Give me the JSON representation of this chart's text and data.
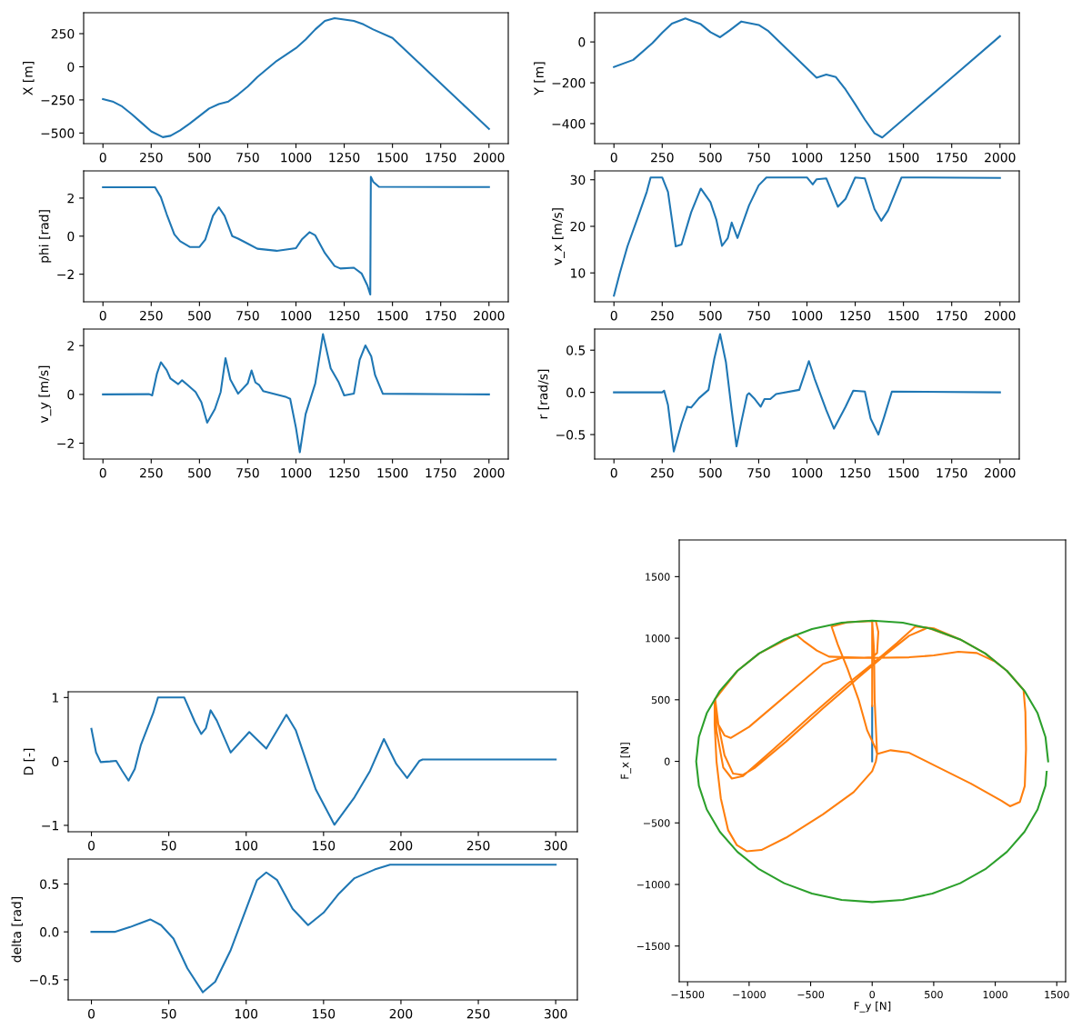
{
  "chart_data": [
    {
      "type": "line",
      "ylabel": "X [m]",
      "xlim": [
        -100,
        2100
      ],
      "ylim": [
        -580,
        408
      ],
      "xticks": [
        0,
        250,
        500,
        750,
        1000,
        1250,
        1500,
        1750,
        2000
      ],
      "yticks": [
        -500,
        -250,
        0,
        250
      ],
      "series": [
        {
          "color": "#1f77b4",
          "x": [
            0,
            50,
            100,
            150,
            200,
            250,
            310,
            350,
            400,
            450,
            500,
            550,
            600,
            650,
            700,
            750,
            800,
            900,
            1000,
            1050,
            1100,
            1150,
            1200,
            1300,
            1350,
            1400,
            1500,
            1600,
            1700,
            1800,
            1900,
            2000
          ],
          "values": [
            -244,
            -262,
            -300,
            -359,
            -423,
            -487,
            -531,
            -521,
            -479,
            -428,
            -372,
            -315,
            -282,
            -262,
            -210,
            -149,
            -77,
            44,
            141,
            205,
            282,
            346,
            367,
            346,
            320,
            282,
            218,
            80,
            -57,
            -194,
            -332,
            -469
          ]
        }
      ]
    },
    {
      "type": "line",
      "ylabel": "Y [m]",
      "xlim": [
        -100,
        2100
      ],
      "ylim": [
        -498,
        143
      ],
      "xticks": [
        0,
        250,
        500,
        750,
        1000,
        1250,
        1500,
        1750,
        2000
      ],
      "yticks": [
        -400,
        -200,
        0
      ],
      "series": [
        {
          "color": "#1f77b4",
          "x": [
            0,
            100,
            200,
            250,
            300,
            370,
            450,
            500,
            550,
            600,
            660,
            750,
            800,
            900,
            1000,
            1050,
            1100,
            1150,
            1200,
            1250,
            1300,
            1350,
            1390,
            1500,
            1750,
            2000
          ],
          "values": [
            -123,
            -88,
            -5,
            45,
            90,
            115,
            87,
            48,
            23,
            57,
            100,
            83,
            53,
            -38,
            -130,
            -175,
            -160,
            -172,
            -233,
            -305,
            -380,
            -447,
            -468,
            -379,
            -175,
            28
          ]
        }
      ]
    },
    {
      "type": "line",
      "ylabel": "phi [rad]",
      "xlim": [
        -100,
        2100
      ],
      "ylim": [
        -3.45,
        3.43
      ],
      "xticks": [
        0,
        250,
        500,
        750,
        1000,
        1250,
        1500,
        1750,
        2000
      ],
      "yticks": [
        -2,
        0,
        2
      ],
      "series": [
        {
          "color": "#1f77b4",
          "x": [
            0,
            270,
            300,
            330,
            370,
            400,
            450,
            500,
            530,
            570,
            600,
            630,
            670,
            700,
            750,
            800,
            900,
            1000,
            1030,
            1070,
            1100,
            1150,
            1200,
            1230,
            1300,
            1340,
            1370,
            1385,
            1388,
            1400,
            1430,
            2000
          ],
          "values": [
            2.57,
            2.57,
            2.05,
            1.16,
            0.09,
            -0.27,
            -0.57,
            -0.57,
            -0.18,
            1.07,
            1.52,
            1.07,
            0,
            -0.13,
            -0.39,
            -0.66,
            -0.77,
            -0.63,
            -0.18,
            0.21,
            0.04,
            -0.89,
            -1.57,
            -1.7,
            -1.66,
            -1.96,
            -2.59,
            -3.07,
            3.12,
            2.86,
            2.59,
            2.58
          ]
        }
      ]
    },
    {
      "type": "line",
      "ylabel": "v_x [m/s]",
      "xlim": [
        -100,
        2100
      ],
      "ylim": [
        3.8,
        31.9
      ],
      "xticks": [
        0,
        250,
        500,
        750,
        1000,
        1250,
        1500,
        1750,
        2000
      ],
      "yticks": [
        10,
        20,
        30
      ],
      "series": [
        {
          "color": "#1f77b4",
          "x": [
            0,
            30,
            70,
            120,
            170,
            190,
            250,
            280,
            320,
            350,
            400,
            450,
            500,
            530,
            560,
            590,
            610,
            640,
            700,
            750,
            790,
            1000,
            1030,
            1050,
            1100,
            1160,
            1200,
            1250,
            1300,
            1350,
            1385,
            1420,
            1490,
            2000
          ],
          "values": [
            5.1,
            9.9,
            15.7,
            21.5,
            27.4,
            30.5,
            30.5,
            27.4,
            15.7,
            16.1,
            23,
            28.1,
            25.2,
            21.5,
            15.8,
            17.5,
            20.8,
            17.5,
            24.5,
            28.8,
            30.5,
            30.5,
            29,
            30.1,
            30.3,
            24.2,
            25.9,
            30.5,
            30.3,
            23.7,
            21.2,
            23.4,
            30.5,
            30.4
          ]
        }
      ]
    },
    {
      "type": "line",
      "ylabel": "v_y [m/s]",
      "xlim": [
        -100,
        2100
      ],
      "ylim": [
        -2.65,
        2.68
      ],
      "xticks": [
        0,
        250,
        500,
        750,
        1000,
        1250,
        1500,
        1750,
        2000
      ],
      "yticks": [
        -2,
        0,
        2
      ],
      "series": [
        {
          "color": "#1f77b4",
          "x": [
            0,
            240,
            255,
            280,
            300,
            330,
            350,
            390,
            410,
            440,
            480,
            510,
            540,
            580,
            610,
            635,
            660,
            700,
            750,
            770,
            790,
            810,
            830,
            950,
            970,
            1000,
            1020,
            1050,
            1100,
            1140,
            1180,
            1220,
            1250,
            1300,
            1330,
            1360,
            1390,
            1410,
            1450,
            2000
          ],
          "values": [
            0,
            0.01,
            -0.04,
            0.86,
            1.32,
            1.0,
            0.65,
            0.42,
            0.58,
            0.38,
            0.1,
            -0.32,
            -1.16,
            -0.6,
            0.1,
            1.49,
            0.61,
            0.03,
            0.45,
            0.98,
            0.49,
            0.38,
            0.14,
            -0.11,
            -0.18,
            -1.37,
            -2.37,
            -0.81,
            0.45,
            2.47,
            1.07,
            0.52,
            -0.04,
            0.03,
            1.42,
            2.01,
            1.56,
            0.79,
            0.03,
            0
          ]
        }
      ]
    },
    {
      "type": "line",
      "ylabel": "r [rad/s]",
      "xlim": [
        -100,
        2100
      ],
      "ylim": [
        -0.79,
        0.75
      ],
      "xticks": [
        0,
        250,
        500,
        750,
        1000,
        1250,
        1500,
        1750,
        2000
      ],
      "yticks": [
        -0.5,
        {
          "value": 0,
          "label": "0.0"
        },
        0.5
      ],
      "series": [
        {
          "color": "#1f77b4",
          "x": [
            0,
            250,
            260,
            280,
            310,
            350,
            380,
            400,
            440,
            490,
            520,
            550,
            580,
            610,
            635,
            660,
            690,
            700,
            730,
            760,
            780,
            810,
            840,
            960,
            1000,
            1010,
            1040,
            1100,
            1140,
            1200,
            1240,
            1300,
            1330,
            1370,
            1400,
            1440,
            2000
          ],
          "values": [
            0,
            0,
            0.02,
            -0.15,
            -0.7,
            -0.37,
            -0.17,
            -0.18,
            -0.07,
            0.03,
            0.4,
            0.69,
            0.36,
            -0.21,
            -0.64,
            -0.35,
            -0.03,
            -0.01,
            -0.08,
            -0.17,
            -0.08,
            -0.08,
            -0.02,
            0.03,
            0.3,
            0.37,
            0.16,
            -0.21,
            -0.43,
            -0.17,
            0.02,
            0.01,
            -0.31,
            -0.5,
            -0.29,
            0.01,
            0
          ]
        }
      ]
    },
    {
      "type": "line",
      "ylabel": "D [-]",
      "xlim": [
        -15,
        314
      ],
      "ylim": [
        -1.1,
        1.09
      ],
      "xticks": [
        0,
        50,
        100,
        150,
        200,
        250,
        300
      ],
      "yticks": [
        -1,
        0,
        1
      ],
      "series": [
        {
          "color": "#1f77b4",
          "x": [
            0,
            3,
            6,
            12,
            16,
            20,
            24,
            28,
            32,
            40,
            43,
            60,
            67,
            71,
            74,
            77,
            81,
            90,
            102,
            113,
            126,
            132,
            145,
            157,
            170,
            180,
            189,
            197,
            204,
            212,
            214,
            300
          ],
          "values": [
            0.51,
            0.14,
            -0.01,
            0,
            0.01,
            -0.15,
            -0.3,
            -0.12,
            0.26,
            0.76,
            1.0,
            1.0,
            0.61,
            0.43,
            0.52,
            0.8,
            0.64,
            0.14,
            0.46,
            0.2,
            0.73,
            0.49,
            -0.44,
            -0.99,
            -0.56,
            -0.15,
            0.35,
            -0.04,
            -0.26,
            0.01,
            0.03,
            0.03
          ]
        }
      ]
    },
    {
      "type": "line",
      "ylabel": "delta [rad]",
      "xlim": [
        -15,
        314
      ],
      "ylim": [
        -0.71,
        0.76
      ],
      "xticks": [
        0,
        50,
        100,
        150,
        200,
        250,
        300
      ],
      "yticks": [
        -0.5,
        {
          "value": 0,
          "label": "0.0"
        },
        0.5
      ],
      "series": [
        {
          "color": "#1f77b4",
          "x": [
            0,
            15,
            25,
            38,
            45,
            53,
            62,
            72,
            80,
            90,
            100,
            107,
            113,
            120,
            130,
            140,
            150,
            160,
            170,
            183,
            193,
            300
          ],
          "values": [
            0,
            0,
            0.05,
            0.13,
            0.07,
            -0.07,
            -0.38,
            -0.63,
            -0.52,
            -0.19,
            0.24,
            0.54,
            0.62,
            0.54,
            0.24,
            0.07,
            0.2,
            0.4,
            0.56,
            0.65,
            0.7,
            0.7
          ]
        }
      ]
    },
    {
      "type": "line",
      "xlabel": "F_y [N]",
      "ylabel": "F_x [N]",
      "xlim": [
        -1568,
        1572
      ],
      "ylim": [
        -1790,
        1798
      ],
      "xticks": [
        -1500,
        -1000,
        -500,
        0,
        500,
        1000,
        1500
      ],
      "yticks": [
        -1500,
        -1000,
        -500,
        0,
        500,
        1000,
        1500
      ],
      "series": [
        {
          "color": "#1f77b4",
          "x": [
            0,
            0
          ],
          "values": [
            0,
            450
          ]
        },
        {
          "color": "#ff7f0e",
          "x": [
            0,
            0,
            0,
            -200,
            -330,
            -280,
            -200,
            -110,
            -40,
            30,
            40,
            150,
            300,
            500,
            800,
            1050,
            1120,
            1200,
            1240,
            1250,
            1245,
            1230,
            1095,
            919,
            715,
            450,
            300,
            100,
            -100,
            -400,
            -700,
            -950,
            -1050,
            -1130,
            -1200,
            -1250,
            -1275,
            -1265,
            -1210,
            -1140,
            -1050,
            -800,
            -500,
            -200,
            0,
            200,
            350,
            500,
            715,
            919,
            1095,
            1000,
            850,
            700,
            500,
            300,
            0,
            -200,
            -350,
            -450,
            -560,
            -620,
            -919,
            -1095,
            -1280,
            -1250,
            -1200,
            -1150,
            -1000,
            -800,
            -600,
            -400,
            -250,
            -100,
            0,
            40,
            50,
            30,
            0,
            15,
            20,
            40,
            30,
            0,
            -150,
            -400,
            -700,
            -900,
            -1020,
            -1100,
            -1170,
            -1230,
            -1265,
            -1280,
            -1280
          ],
          "values": [
            450,
            800,
            1140,
            1130,
            1095,
            950,
            750,
            500,
            250,
            100,
            60,
            90,
            70,
            -30,
            -180,
            -320,
            -365,
            -330,
            -200,
            100,
            400,
            580,
            735,
            876,
            990,
            1085,
            1020,
            860,
            690,
            430,
            160,
            -50,
            -110,
            -100,
            50,
            300,
            500,
            250,
            -50,
            -140,
            -120,
            100,
            370,
            630,
            790,
            960,
            1095,
            1080,
            990,
            876,
            735,
            810,
            880,
            890,
            860,
            845,
            840,
            845,
            850,
            900,
            980,
            1030,
            876,
            735,
            500,
            300,
            210,
            190,
            280,
            450,
            620,
            790,
            840,
            840,
            845,
            880,
            1050,
            1140,
            1140,
            900,
            500,
            60,
            0,
            -80,
            -250,
            -430,
            -620,
            -720,
            -730,
            -680,
            -560,
            -300,
            0,
            300,
            500
          ]
        },
        {
          "color": "#2ca02c",
          "x": [
            1430,
            1408,
            1344,
            1238,
            1095,
            919,
            715,
            489,
            248,
            0,
            -248,
            -489,
            -715,
            -919,
            -1095,
            -1238,
            -1344,
            -1408,
            -1430,
            -1408,
            -1344,
            -1238,
            -1095,
            -919,
            -715,
            -489,
            -248,
            0,
            248,
            489,
            715,
            919,
            1095,
            1238,
            1344,
            1408,
            1418
          ],
          "values": [
            0,
            198,
            391,
            572,
            735,
            876,
            990,
            1074,
            1126,
            1143,
            1126,
            1074,
            990,
            876,
            735,
            572,
            391,
            198,
            0,
            -198,
            -391,
            -572,
            -735,
            -876,
            -990,
            -1074,
            -1126,
            -1143,
            -1126,
            -1074,
            -990,
            -876,
            -735,
            -572,
            -391,
            -198,
            -85
          ]
        }
      ]
    }
  ]
}
